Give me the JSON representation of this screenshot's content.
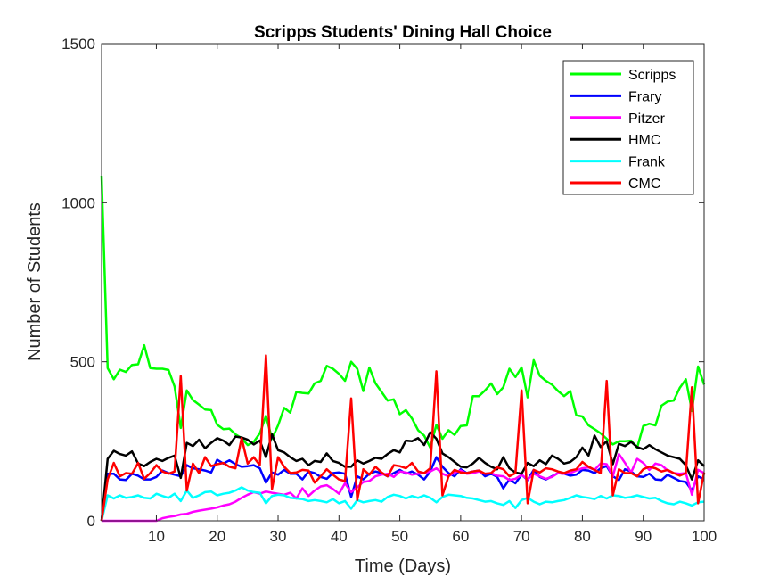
{
  "chart_data": {
    "type": "line",
    "title": "Scripps Students' Dining Hall Choice",
    "xlabel": "Time (Days)",
    "ylabel": "Number of Students",
    "xlim": [
      1,
      100
    ],
    "ylim": [
      0,
      1500
    ],
    "xticks": [
      10,
      20,
      30,
      40,
      50,
      60,
      70,
      80,
      90,
      100
    ],
    "yticks": [
      0,
      500,
      1000,
      1500
    ],
    "legend_position": "top-right",
    "grid": false,
    "series": [
      {
        "name": "Scripps",
        "color": "#00ff00",
        "values": [
          1085,
          480,
          445,
          475,
          468,
          490,
          492,
          552,
          480,
          478,
          478,
          474,
          422,
          292,
          410,
          380,
          365,
          350,
          348,
          302,
          288,
          290,
          272,
          260,
          238,
          248,
          275,
          330,
          258,
          300,
          355,
          340,
          405,
          402,
          400,
          432,
          440,
          487,
          478,
          462,
          440,
          500,
          478,
          408,
          482,
          432,
          405,
          378,
          382,
          335,
          348,
          322,
          285,
          268,
          230,
          302,
          258,
          285,
          270,
          298,
          300,
          392,
          392,
          410,
          432,
          398,
          420,
          478,
          452,
          482,
          388,
          505,
          456,
          440,
          428,
          408,
          392,
          408,
          332,
          328,
          300,
          288,
          275,
          258,
          240,
          250,
          250,
          252,
          230,
          298,
          305,
          300,
          362,
          375,
          378,
          418,
          445,
          345,
          485,
          428
        ]
      },
      {
        "name": "Frary",
        "color": "#0000ff",
        "values": [
          0,
          148,
          148,
          130,
          128,
          148,
          142,
          130,
          130,
          138,
          158,
          150,
          145,
          140,
          175,
          165,
          162,
          158,
          152,
          192,
          180,
          190,
          178,
          170,
          172,
          175,
          165,
          120,
          152,
          145,
          160,
          148,
          148,
          130,
          155,
          150,
          138,
          132,
          150,
          152,
          148,
          75,
          140,
          130,
          148,
          155,
          150,
          140,
          150,
          160,
          148,
          155,
          145,
          130,
          155,
          200,
          170,
          150,
          140,
          162,
          150,
          155,
          158,
          140,
          148,
          138,
          102,
          130,
          118,
          145,
          128,
          160,
          138,
          130,
          140,
          150,
          148,
          142,
          145,
          160,
          158,
          150,
          165,
          172,
          140,
          128,
          162,
          155,
          140,
          138,
          148,
          130,
          128,
          145,
          135,
          125,
          122,
          95,
          140,
          130
        ]
      },
      {
        "name": "Pitzer",
        "color": "#ff00ff",
        "values": [
          0,
          0,
          0,
          0,
          0,
          0,
          0,
          0,
          0,
          0,
          8,
          12,
          15,
          20,
          22,
          28,
          32,
          35,
          38,
          42,
          48,
          52,
          60,
          72,
          82,
          90,
          85,
          92,
          88,
          85,
          82,
          88,
          70,
          102,
          78,
          95,
          108,
          112,
          100,
          85,
          118,
          90,
          105,
          122,
          125,
          140,
          145,
          148,
          138,
          155,
          152,
          145,
          148,
          150,
          155,
          165,
          148,
          140,
          152,
          158,
          148,
          150,
          155,
          148,
          150,
          142,
          140,
          128,
          132,
          145,
          130,
          148,
          140,
          132,
          138,
          150,
          148,
          150,
          158,
          165,
          168,
          160,
          180,
          178,
          140,
          210,
          182,
          152,
          195,
          182,
          160,
          180,
          175,
          158,
          150,
          148,
          150,
          82,
          160,
          150
        ]
      },
      {
        "name": "HMC",
        "color": "#000000",
        "values": [
          0,
          195,
          220,
          210,
          205,
          218,
          180,
          172,
          185,
          195,
          188,
          198,
          205,
          135,
          245,
          235,
          255,
          228,
          245,
          260,
          252,
          238,
          265,
          262,
          255,
          240,
          252,
          200,
          272,
          222,
          215,
          200,
          188,
          195,
          175,
          188,
          185,
          212,
          188,
          182,
          170,
          170,
          190,
          180,
          188,
          198,
          195,
          210,
          222,
          215,
          252,
          250,
          260,
          238,
          278,
          258,
          212,
          200,
          185,
          170,
          168,
          180,
          198,
          182,
          170,
          162,
          200,
          165,
          152,
          148,
          182,
          172,
          190,
          178,
          205,
          195,
          180,
          185,
          200,
          230,
          205,
          268,
          232,
          250,
          178,
          242,
          235,
          248,
          232,
          225,
          238,
          225,
          215,
          205,
          200,
          195,
          175,
          130,
          190,
          172
        ]
      },
      {
        "name": "Frank",
        "color": "#00ffff",
        "values": [
          0,
          80,
          70,
          80,
          72,
          75,
          80,
          72,
          70,
          85,
          78,
          72,
          85,
          62,
          95,
          72,
          80,
          90,
          92,
          80,
          85,
          88,
          95,
          105,
          95,
          90,
          88,
          55,
          78,
          82,
          80,
          72,
          70,
          68,
          62,
          65,
          62,
          58,
          68,
          55,
          62,
          38,
          65,
          58,
          62,
          65,
          60,
          75,
          82,
          78,
          70,
          78,
          72,
          80,
          72,
          58,
          75,
          82,
          80,
          78,
          72,
          70,
          65,
          60,
          62,
          55,
          50,
          62,
          40,
          65,
          72,
          60,
          52,
          60,
          58,
          62,
          65,
          72,
          80,
          75,
          72,
          68,
          78,
          70,
          80,
          78,
          72,
          75,
          80,
          75,
          70,
          72,
          62,
          55,
          52,
          60,
          55,
          48,
          58,
          60
        ]
      },
      {
        "name": "CMC",
        "color": "#ff0000",
        "values": [
          0,
          130,
          182,
          140,
          150,
          148,
          182,
          132,
          150,
          175,
          155,
          148,
          155,
          455,
          95,
          180,
          150,
          200,
          172,
          178,
          182,
          170,
          165,
          260,
          180,
          200,
          175,
          520,
          100,
          200,
          170,
          150,
          152,
          160,
          158,
          120,
          140,
          162,
          145,
          130,
          125,
          385,
          65,
          162,
          145,
          170,
          152,
          140,
          175,
          172,
          165,
          182,
          155,
          150,
          165,
          470,
          80,
          140,
          160,
          152,
          150,
          155,
          158,
          148,
          150,
          168,
          162,
          140,
          150,
          410,
          55,
          160,
          152,
          165,
          162,
          155,
          150,
          158,
          162,
          185,
          170,
          160,
          150,
          440,
          80,
          162,
          150,
          150,
          140,
          162,
          170,
          165,
          155,
          160,
          150,
          142,
          150,
          420,
          55,
          152
        ]
      }
    ]
  }
}
